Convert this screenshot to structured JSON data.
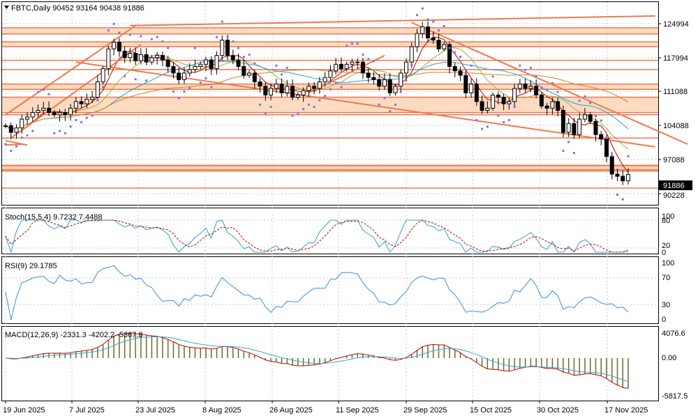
{
  "chart_data": {
    "type": "candlestick",
    "symbol": "FBTC",
    "timeframe": "Daily",
    "header": "FBTC,Daily  90452 93164 90438 91886",
    "ohlc_last": {
      "open": 90452,
      "high": 93164,
      "low": 90438,
      "close": 91886
    },
    "price_axis": {
      "range": [
        85000,
        131000
      ],
      "ticks": [
        "124994",
        "117994",
        "111088",
        "104088",
        "97088",
        "90228"
      ],
      "last_price_label": "91886"
    },
    "date_axis": {
      "labels": [
        "19 Jun 2025",
        "7 Jul 2025",
        "23 Jul 2025",
        "8 Aug 2025",
        "26 Aug 2025",
        "11 Sep 2025",
        "29 Sep 2025",
        "15 Oct 2025",
        "30 Oct 2025",
        "17 Nov 2025"
      ]
    },
    "closes": [
      103000,
      101500,
      102500,
      104500,
      105000,
      106000,
      106500,
      107000,
      106000,
      105500,
      106000,
      105500,
      107000,
      108500,
      108000,
      109000,
      109500,
      113000,
      116000,
      120500,
      122000,
      120000,
      118500,
      119500,
      117800,
      119200,
      117500,
      118500,
      119000,
      118000,
      116500,
      115000,
      113500,
      115000,
      115800,
      116500,
      117000,
      118000,
      116000,
      119000,
      122500,
      119000,
      118000,
      116500,
      114500,
      115000,
      113000,
      112000,
      110000,
      111500,
      112500,
      110500,
      112000,
      109500,
      110000,
      111000,
      112000,
      111500,
      113000,
      114000,
      115500,
      117000,
      116000,
      117000,
      117500,
      117500,
      115000,
      114000,
      113500,
      112000,
      113500,
      110500,
      112000,
      115000,
      117500,
      121000,
      124000,
      125500,
      123000,
      122500,
      120500,
      121500,
      116500,
      115500,
      114500,
      110500,
      112500,
      108500,
      106500,
      107000,
      110000,
      109500,
      108000,
      108500,
      111500,
      112500,
      111500,
      112000,
      110000,
      107500,
      107000,
      108500,
      106500,
      101500,
      103500,
      101000,
      104500,
      105500,
      104000,
      101000,
      100000,
      96000,
      92000,
      91500,
      90452,
      91886
    ],
    "indicators": {
      "stochastic": {
        "label": "Stoch(15,5,4) 9.7232 7.4488",
        "main": 9.7232,
        "signal": 7.4488,
        "scale_labels": [
          "100",
          "80",
          "20",
          "0"
        ]
      },
      "rsi": {
        "label": "RSI(9) 29.1785",
        "value": 29.1785,
        "scale_labels": [
          "100",
          "70",
          "30",
          "0"
        ]
      },
      "macd": {
        "label": "MACD(12,26,9) -2331.3 -4202.2 -5367.8",
        "values": [
          -2331.3,
          -4202.2,
          -5367.8
        ],
        "scale_labels": [
          "4076.6",
          "0.00",
          "-5817.5"
        ]
      }
    },
    "zones": [
      [
        123900,
        125300
      ],
      [
        121000,
        122100
      ],
      [
        111300,
        112500
      ],
      [
        106000,
        109500
      ],
      [
        92700,
        94000
      ],
      [
        93000,
        93900
      ]
    ],
    "level_lines": [
      105500,
      117900,
      115800,
      100200,
      88800
    ],
    "trendlines": [
      {
        "from": [
          0,
          105500
        ],
        "to": [
          24,
          125800
        ]
      },
      {
        "from": [
          23,
          125800
        ],
        "to": [
          120,
          128000
        ]
      },
      {
        "from": [
          13,
          117500
        ],
        "to": [
          120,
          98200
        ]
      },
      {
        "from": [
          75,
          126500
        ],
        "to": [
          126,
          98800
        ]
      },
      {
        "from": [
          0,
          98600
        ],
        "to": [
          3,
          98800
        ]
      },
      {
        "from": [
          1,
          100200
        ],
        "to": [
          25,
          121500
        ]
      },
      {
        "from": [
          56,
          110500
        ],
        "to": [
          70,
          119000
        ]
      },
      {
        "from": [
          0,
          99600
        ],
        "to": [
          4,
          98600
        ]
      }
    ],
    "colors": {
      "zone": "#fbd5b5",
      "line": "#f07850",
      "bull": "#ffffff",
      "bear": "#000000",
      "psar": "#7b73e6",
      "ma_fast": "#c00000",
      "ma_mid": "#9ab040",
      "ma_slow": "#20a0d0",
      "ma_long": "#d08020",
      "stoch_main": "#30a0d0",
      "stoch_signal": "#c00000",
      "rsi": "#3b8fd8",
      "macd_main": "#c00000",
      "macd_signal": "#30a8d0",
      "macd_hist": "#6b6b2a"
    },
    "grid": "dotted"
  }
}
